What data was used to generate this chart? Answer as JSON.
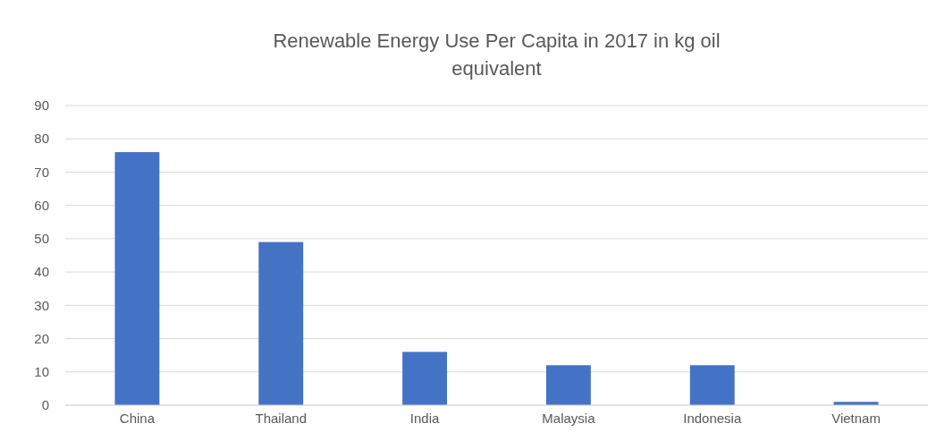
{
  "chart_data": {
    "type": "bar",
    "title": "Renewable Energy Use Per Capita in 2017 in kg oil equivalent",
    "categories": [
      "China",
      "Thailand",
      "India",
      "Malaysia",
      "Indonesia",
      "Vietnam"
    ],
    "values": [
      76,
      49,
      16,
      12,
      12,
      1
    ],
    "color": "#4472c4",
    "ylim": [
      0,
      90
    ],
    "yticks": [
      0,
      10,
      20,
      30,
      40,
      50,
      60,
      70,
      80,
      90
    ],
    "grid": "y"
  }
}
